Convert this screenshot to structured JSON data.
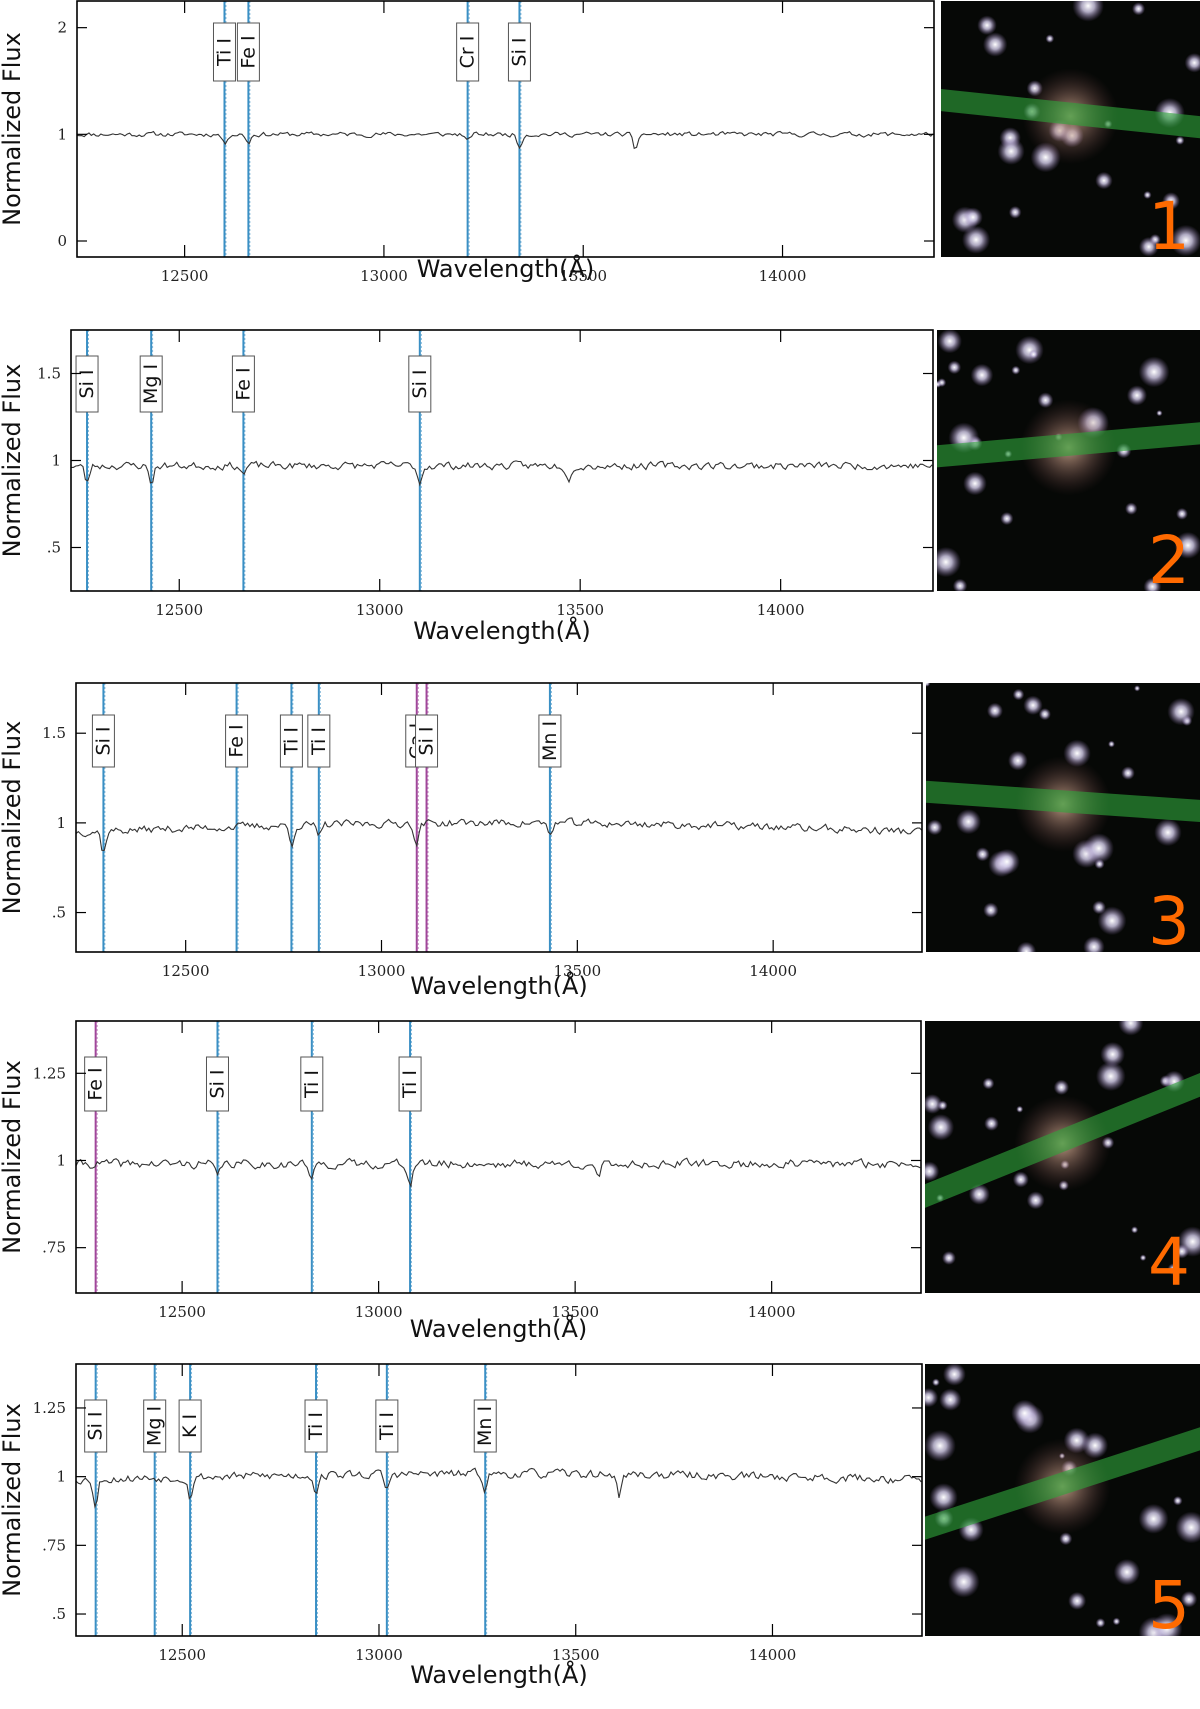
{
  "chart_data": [
    {
      "type": "line",
      "panel_number": "1",
      "xlabel": "Wavelength(Å)",
      "ylabel": "Normalized Flux",
      "xlim": [
        12230,
        14380
      ],
      "ylim": [
        -0.15,
        2.25
      ],
      "yticks": [
        0,
        1,
        2
      ],
      "ytick_labels": [
        "0",
        "1",
        "2"
      ],
      "xticks": [
        12500,
        13000,
        13500,
        14000
      ],
      "xtick_labels": [
        "12500",
        "13000",
        "13500",
        "14000"
      ],
      "grid": false,
      "spectral_lines": [
        {
          "label": "Ti I",
          "x": 12600,
          "color": "#3a8fc4"
        },
        {
          "label": "Fe I",
          "x": 12660,
          "color": "#3a8fc4"
        },
        {
          "label": "Cr I",
          "x": 13210,
          "color": "#3a8fc4"
        },
        {
          "label": "Si I",
          "x": 13340,
          "color": "#3a8fc4"
        }
      ],
      "dips": [
        [
          12600,
          0.09
        ],
        [
          12660,
          0.08
        ],
        [
          13210,
          0.07
        ],
        [
          13340,
          0.12
        ],
        [
          13630,
          0.15
        ]
      ],
      "spectrum": {
        "x_start": 12230,
        "x_end": 14380,
        "step": 6,
        "baseline": 1.0,
        "slope": 0.0,
        "noise": 0.035,
        "seed": 11
      }
    },
    {
      "type": "line",
      "panel_number": "2",
      "xlabel": "Wavelength(Å)",
      "ylabel": "Normalized Flux",
      "xlim": [
        12230,
        14380
      ],
      "ylim": [
        0.25,
        1.75
      ],
      "yticks": [
        0.5,
        1,
        1.5
      ],
      "ytick_labels": [
        ".5",
        "1",
        "1.5"
      ],
      "xticks": [
        12500,
        13000,
        13500,
        14000
      ],
      "xtick_labels": [
        "12500",
        "13000",
        "13500",
        "14000"
      ],
      "grid": false,
      "spectral_lines": [
        {
          "label": "Si I",
          "x": 12270,
          "color": "#3a8fc4"
        },
        {
          "label": "Mg I",
          "x": 12430,
          "color": "#3a8fc4"
        },
        {
          "label": "Fe I",
          "x": 12660,
          "color": "#3a8fc4"
        },
        {
          "label": "Si I",
          "x": 13100,
          "color": "#3a8fc4"
        }
      ],
      "dips": [
        [
          12270,
          0.1
        ],
        [
          12430,
          0.1
        ],
        [
          12660,
          0.05
        ],
        [
          13100,
          0.1
        ],
        [
          13470,
          0.08
        ]
      ],
      "spectrum": {
        "x_start": 12230,
        "x_end": 14380,
        "step": 6,
        "baseline": 0.97,
        "slope": 0.0,
        "noise": 0.035,
        "seed": 23
      }
    },
    {
      "type": "line",
      "panel_number": "3",
      "xlabel": "Wavelength(Å)",
      "ylabel": "Normalized Flux",
      "xlim": [
        12220,
        14380
      ],
      "ylim": [
        0.28,
        1.78
      ],
      "yticks": [
        0.5,
        1,
        1.5
      ],
      "ytick_labels": [
        ".5",
        "1",
        "1.5"
      ],
      "xticks": [
        12500,
        13000,
        13500,
        14000
      ],
      "xtick_labels": [
        "12500",
        "13000",
        "13500",
        "14000"
      ],
      "grid": false,
      "spectral_lines": [
        {
          "label": "Si I",
          "x": 12290,
          "color": "#3a8fc4"
        },
        {
          "label": "Fe I",
          "x": 12630,
          "color": "#3a8fc4"
        },
        {
          "label": "Ti I",
          "x": 12770,
          "color": "#3a8fc4"
        },
        {
          "label": "Ti I",
          "x": 12840,
          "color": "#3a8fc4"
        },
        {
          "label": "Ca I",
          "x": 13090,
          "color": "#a0479a"
        },
        {
          "label": "Si I",
          "x": 13115,
          "color": "#a0479a"
        },
        {
          "label": "Mn I",
          "x": 13430,
          "color": "#3a8fc4"
        }
      ],
      "dips": [
        [
          12290,
          0.12
        ],
        [
          12770,
          0.11
        ],
        [
          12840,
          0.08
        ],
        [
          13090,
          0.12
        ],
        [
          13430,
          0.07
        ]
      ],
      "spectrum": {
        "x_start": 12220,
        "x_end": 14380,
        "step": 6,
        "baseline": 0.95,
        "slope": 0.05,
        "noise": 0.035,
        "seed": 37
      }
    },
    {
      "type": "line",
      "panel_number": "4",
      "xlabel": "Wavelength(Å)",
      "ylabel": "Normalized Flux",
      "xlim": [
        12230,
        14380
      ],
      "ylim": [
        0.62,
        1.4
      ],
      "yticks": [
        0.75,
        1,
        1.25
      ],
      "ytick_labels": [
        ".75",
        "1",
        "1.25"
      ],
      "xticks": [
        12500,
        13000,
        13500,
        14000
      ],
      "xtick_labels": [
        "12500",
        "13000",
        "13500",
        "14000"
      ],
      "grid": false,
      "spectral_lines": [
        {
          "label": "Fe I",
          "x": 12280,
          "color": "#a0479a"
        },
        {
          "label": "Si I",
          "x": 12590,
          "color": "#3a8fc4"
        },
        {
          "label": "Ti I",
          "x": 12830,
          "color": "#3a8fc4"
        },
        {
          "label": "Ti I",
          "x": 13080,
          "color": "#3a8fc4"
        }
      ],
      "dips": [
        [
          12590,
          0.04
        ],
        [
          12830,
          0.05
        ],
        [
          13080,
          0.06
        ],
        [
          13560,
          0.05
        ]
      ],
      "spectrum": {
        "x_start": 12230,
        "x_end": 14380,
        "step": 6,
        "baseline": 0.99,
        "slope": 0.0,
        "noise": 0.02,
        "seed": 41
      }
    },
    {
      "type": "line",
      "panel_number": "5",
      "xlabel": "Wavelength(Å)",
      "ylabel": "Normalized Flux",
      "xlim": [
        12230,
        14380
      ],
      "ylim": [
        0.42,
        1.41
      ],
      "yticks": [
        0.5,
        0.75,
        1,
        1.25
      ],
      "ytick_labels": [
        ".5",
        ".75",
        "1",
        "1.25"
      ],
      "xticks": [
        12500,
        13000,
        13500,
        14000
      ],
      "xtick_labels": [
        "12500",
        "13000",
        "13500",
        "14000"
      ],
      "grid": false,
      "spectral_lines": [
        {
          "label": "Si I",
          "x": 12280,
          "color": "#3a8fc4"
        },
        {
          "label": "Mg I",
          "x": 12430,
          "color": "#3a8fc4"
        },
        {
          "label": "K I",
          "x": 12520,
          "color": "#3a8fc4"
        },
        {
          "label": "Ti I",
          "x": 12840,
          "color": "#3a8fc4"
        },
        {
          "label": "Ti I",
          "x": 13020,
          "color": "#3a8fc4"
        },
        {
          "label": "Mn I",
          "x": 13270,
          "color": "#3a8fc4"
        }
      ],
      "dips": [
        [
          12280,
          0.1
        ],
        [
          12520,
          0.07
        ],
        [
          12840,
          0.06
        ],
        [
          13020,
          0.06
        ],
        [
          13270,
          0.05
        ],
        [
          13610,
          0.08
        ]
      ],
      "spectrum": {
        "x_start": 12230,
        "x_end": 14380,
        "step": 6,
        "baseline": 0.99,
        "slope": 0.02,
        "noise": 0.025,
        "seed": 53
      }
    }
  ],
  "colors": {
    "spectrum": "#333333",
    "frame": "#000000",
    "panel_number": "#ff6a00",
    "slit": "#2fa33a",
    "image_background": "#060806"
  }
}
